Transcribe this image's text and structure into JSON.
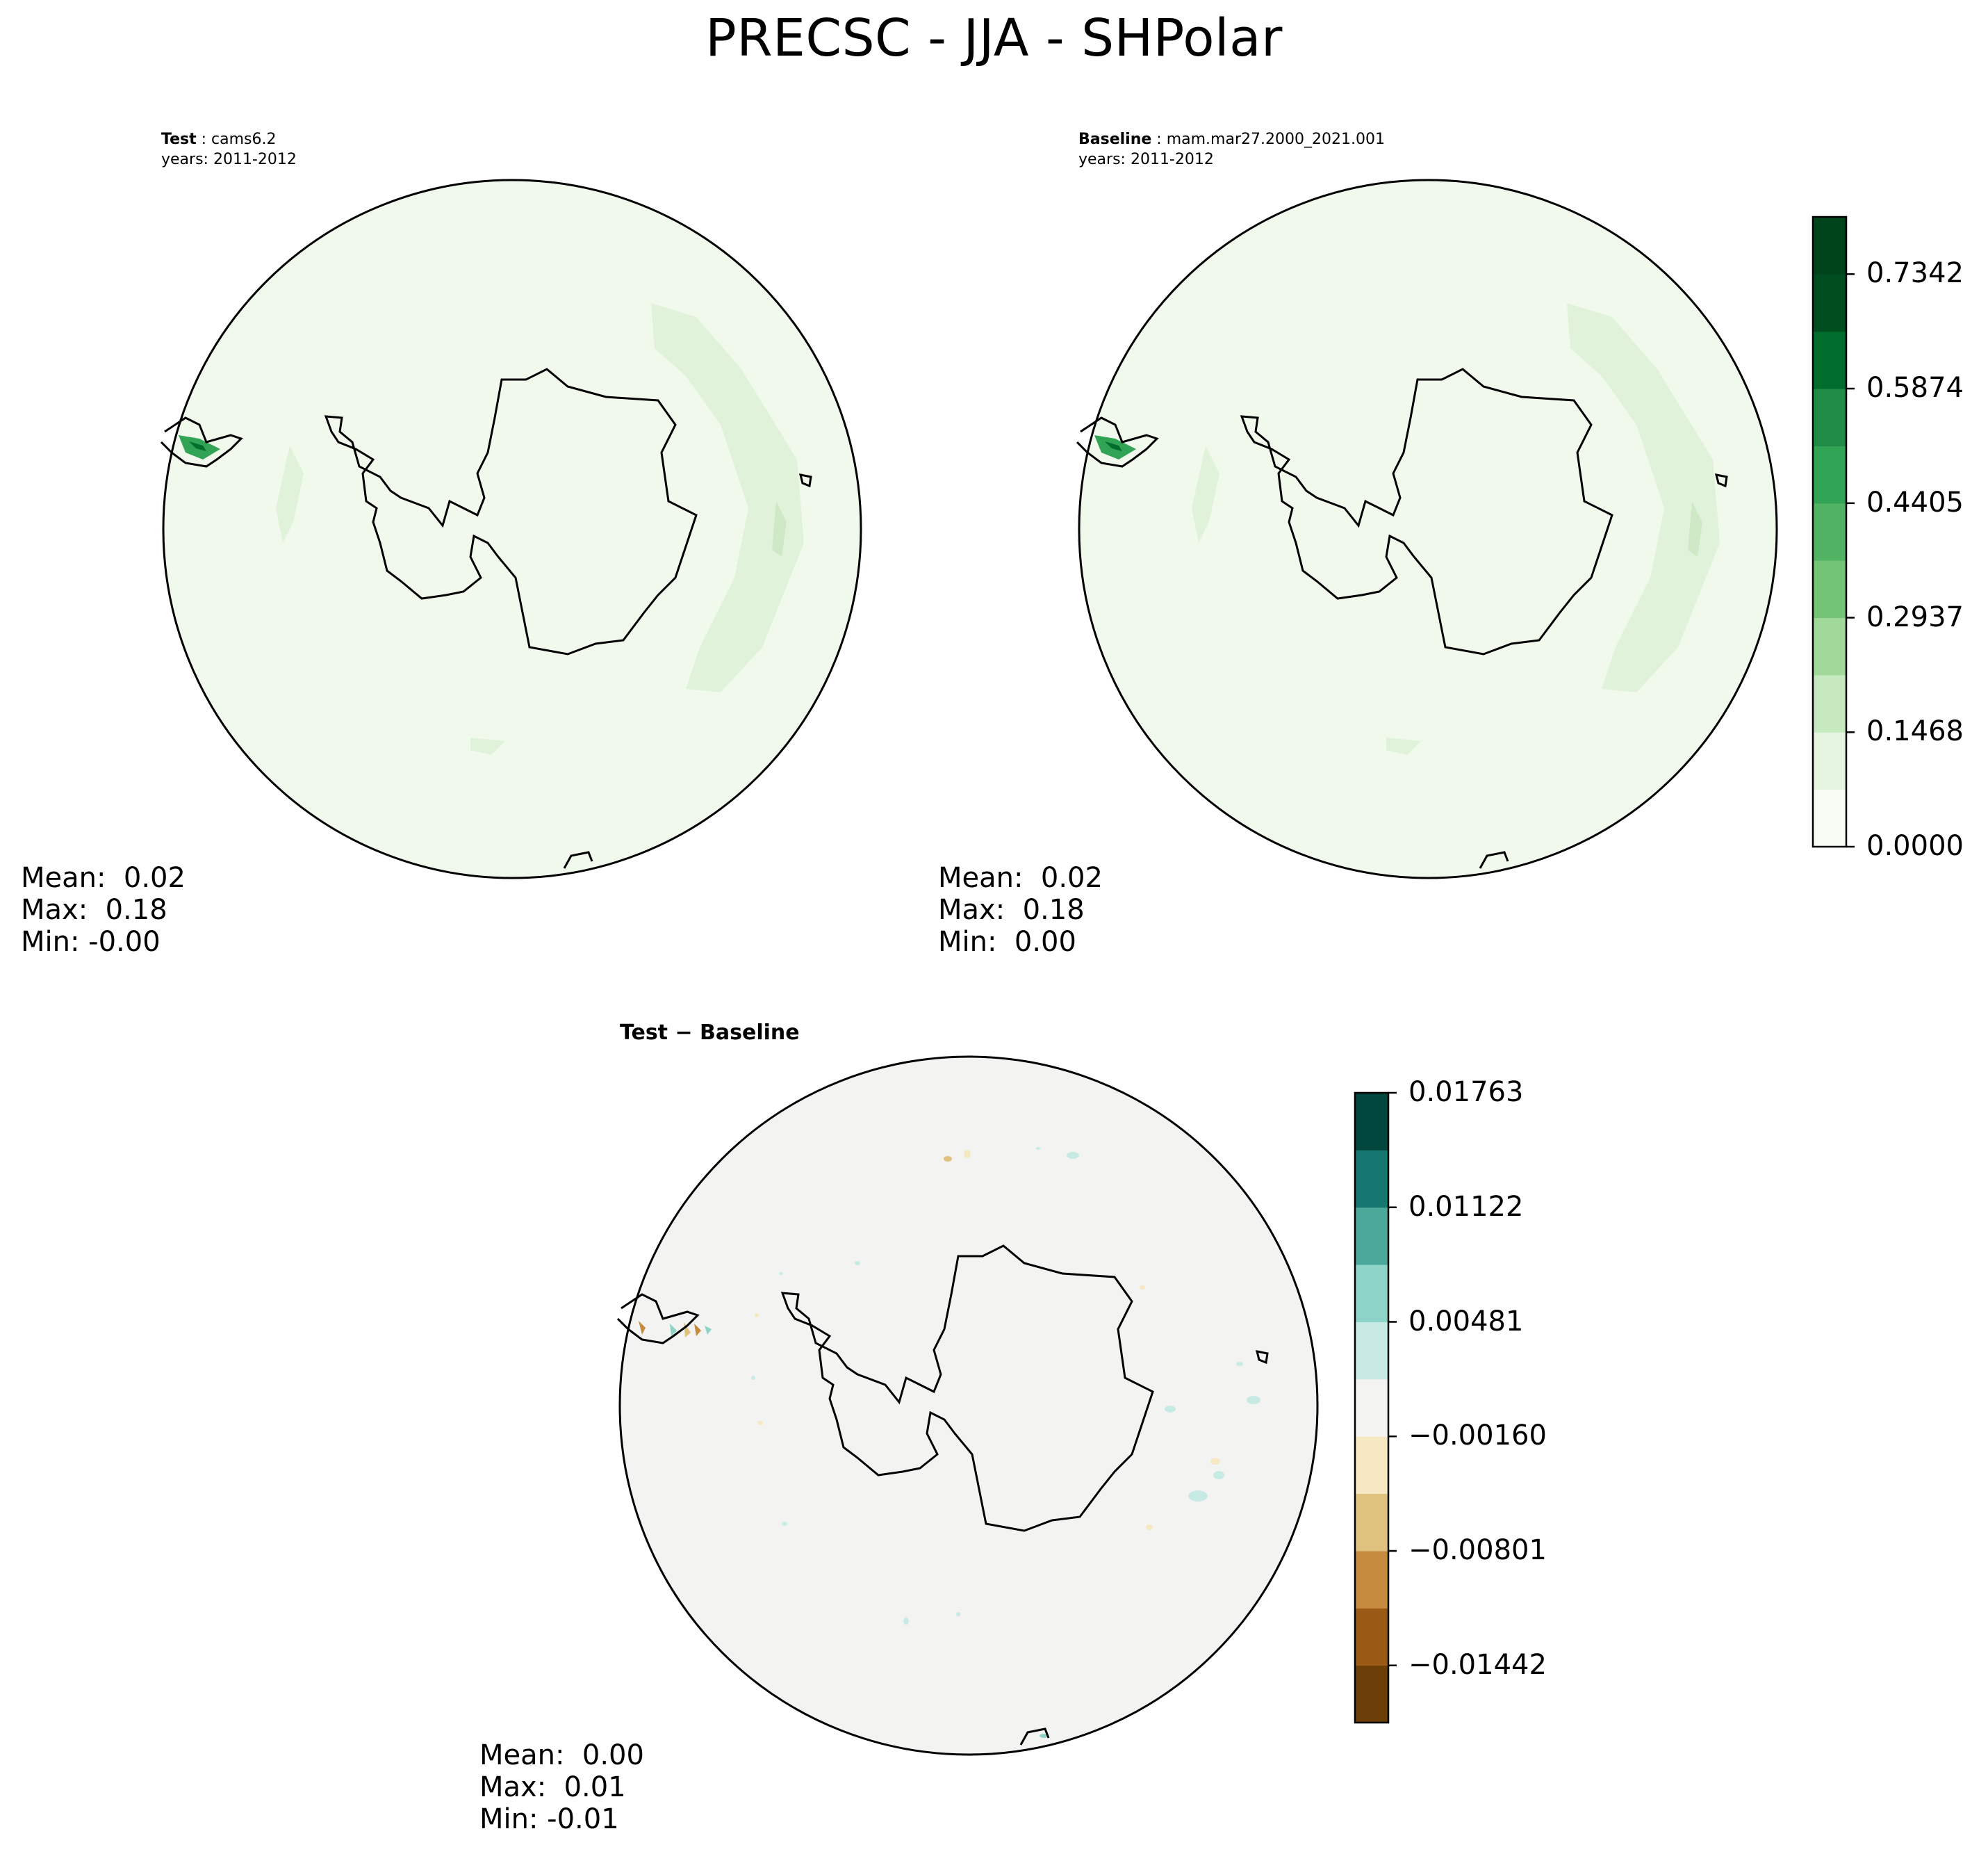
{
  "figure": {
    "title": "PRECSC - JJA - SHPolar"
  },
  "panels": {
    "test": {
      "label_bold": "Test",
      "label_rest": " : cams6.2",
      "years": "years: 2011-2012",
      "stats": {
        "mean": "Mean:  0.02",
        "max": "Max:  0.18",
        "min": "Min: -0.00"
      }
    },
    "baseline": {
      "label_bold": "Baseline",
      "label_rest": " : mam.mar27.2000_2021.001",
      "years": "years: 2011-2012",
      "stats": {
        "mean": "Mean:  0.02",
        "max": "Max:  0.18",
        "min": "Min:  0.00"
      }
    },
    "diff": {
      "title": "Test − Baseline",
      "stats": {
        "mean": "Mean:  0.00",
        "max": "Max:  0.01",
        "min": "Min: -0.01"
      }
    }
  },
  "colorbars": {
    "main": {
      "ticks": [
        "0.0000",
        "0.1468",
        "0.2937",
        "0.4405",
        "0.5874",
        "0.7342"
      ],
      "tick_values": [
        0.0,
        0.1468,
        0.2937,
        0.4405,
        0.5874,
        0.7342
      ],
      "range": [
        0.0,
        0.8076
      ],
      "colors": [
        "#f7fcf5",
        "#e5f5e0",
        "#c7e9c0",
        "#a1d99b",
        "#74c476",
        "#52b264",
        "#31a354",
        "#1f8b45",
        "#006d2c",
        "#004d1f",
        "#00441b"
      ]
    },
    "diff": {
      "ticks": [
        "0.01763",
        "0.01122",
        "0.00481",
        "−0.00160",
        "−0.00801",
        "−0.01442"
      ],
      "tick_values": [
        0.01763,
        0.01122,
        0.00481,
        -0.0016,
        -0.00801,
        -0.01442
      ],
      "range": [
        -0.01762,
        0.01763
      ],
      "colors": [
        "#6b3e08",
        "#9a5a16",
        "#c68a3f",
        "#dfc27d",
        "#f6e8c3",
        "#f3f4f2",
        "#c7eae5",
        "#8dd3c7",
        "#4ba89b",
        "#15776f",
        "#01473d"
      ]
    }
  },
  "map_colors": {
    "ocean_main": "#f0f9ec",
    "band_main": "#e1f2da",
    "band_inner": "#cfe9c7",
    "ocean_diff": "#f3f4f2",
    "coast": "#000000"
  }
}
